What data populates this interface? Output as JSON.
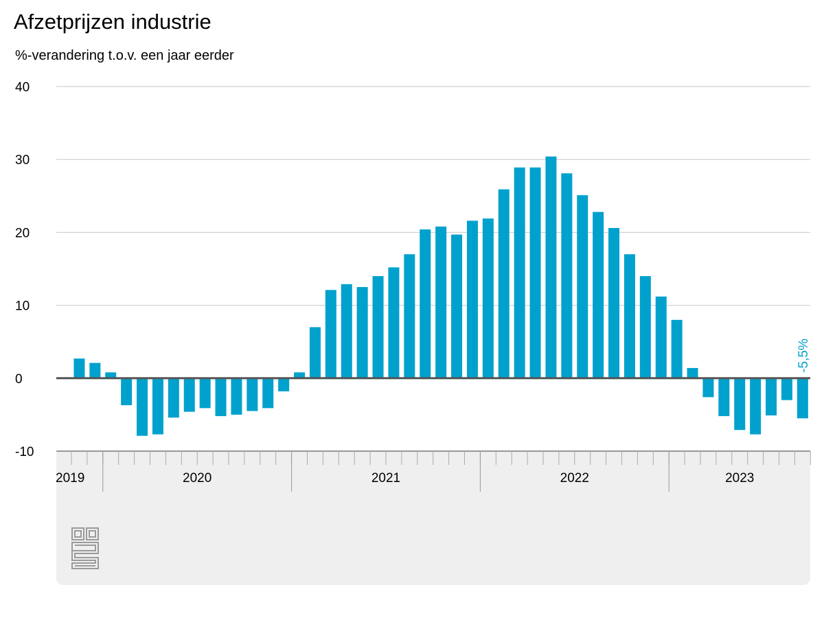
{
  "title": "Afzetprijzen industrie",
  "subtitle": "%-verandering t.o.v. een jaar eerder",
  "colors": {
    "bar": "#00a1cd",
    "label": "#00a1cd",
    "grid": "#c8c8c8",
    "zero": "#555555",
    "panel": "#efefef"
  },
  "chart_data": {
    "type": "bar",
    "title": "Afzetprijzen industrie",
    "subtitle": "%-verandering t.o.v. een jaar eerder",
    "ylim": [
      -10,
      40
    ],
    "yticks": [
      "40",
      "30",
      "20",
      "10",
      "0",
      "-10"
    ],
    "ytick_values": [
      40,
      30,
      20,
      10,
      0,
      -10
    ],
    "grid": true,
    "x_start": "2019-11",
    "year_labels": [
      "2019",
      "2020",
      "2021",
      "2022",
      "2023"
    ],
    "categories": [
      "2019-11",
      "2019-12",
      "2020-01",
      "2020-02",
      "2020-03",
      "2020-04",
      "2020-05",
      "2020-06",
      "2020-07",
      "2020-08",
      "2020-09",
      "2020-10",
      "2020-11",
      "2020-12",
      "2021-01",
      "2021-02",
      "2021-03",
      "2021-04",
      "2021-05",
      "2021-06",
      "2021-07",
      "2021-08",
      "2021-09",
      "2021-10",
      "2021-11",
      "2021-12",
      "2022-01",
      "2022-02",
      "2022-03",
      "2022-04",
      "2022-05",
      "2022-06",
      "2022-07",
      "2022-08",
      "2022-09",
      "2022-10",
      "2022-11",
      "2022-12",
      "2023-01",
      "2023-02",
      "2023-03",
      "2023-04",
      "2023-05",
      "2023-06",
      "2023-07",
      "2023-08",
      "2023-09"
    ],
    "values": [
      2.7,
      2.1,
      0.8,
      -3.7,
      -7.9,
      -7.7,
      -5.4,
      -4.6,
      -4.1,
      -5.2,
      -5.0,
      -4.5,
      -4.1,
      -1.8,
      0.8,
      7.0,
      12.1,
      12.9,
      12.5,
      14.0,
      15.2,
      17.0,
      20.4,
      20.8,
      19.7,
      21.6,
      21.9,
      25.9,
      28.9,
      28.9,
      30.4,
      28.1,
      25.1,
      22.8,
      20.6,
      17.0,
      14.0,
      11.2,
      8.0,
      1.4,
      -2.6,
      -5.2,
      -7.1,
      -7.7,
      -5.1,
      -3.0,
      -5.5
    ],
    "last_value_label": "-5,5%"
  }
}
